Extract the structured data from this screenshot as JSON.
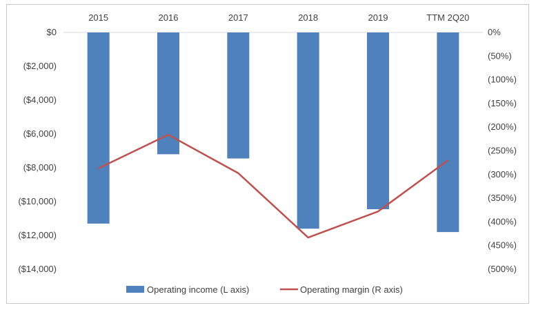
{
  "chart_data": {
    "type": "bar",
    "categories": [
      "2015",
      "2016",
      "2017",
      "2018",
      "2019",
      "TTM 2Q20"
    ],
    "series": [
      {
        "name": "Operating income (L axis)",
        "type": "bar",
        "axis": "left",
        "color": "#4f81bd",
        "values": [
          -11300,
          -7200,
          -7450,
          -11600,
          -10450,
          -11800
        ]
      },
      {
        "name": "Operating margin (R axis)",
        "type": "line",
        "axis": "right",
        "color": "#c0504d",
        "values": [
          -287,
          -216,
          -297,
          -433,
          -378,
          -270
        ]
      }
    ],
    "left_axis": {
      "ylim": [
        -14000,
        0
      ],
      "ticks": [
        0,
        -2000,
        -4000,
        -6000,
        -8000,
        -10000,
        -12000,
        -14000
      ],
      "tick_labels": [
        "$0",
        "($2,000)",
        "($4,000)",
        "($6,000)",
        "($8,000)",
        "($10,000)",
        "($12,000)",
        "($14,000)"
      ]
    },
    "right_axis": {
      "ylim": [
        -500,
        0
      ],
      "ticks": [
        0,
        -50,
        -100,
        -150,
        -200,
        -250,
        -300,
        -350,
        -400,
        -450,
        -500
      ],
      "tick_labels": [
        "0%",
        "(50%)",
        "(100%)",
        "(150%)",
        "(200%)",
        "(250%)",
        "(300%)",
        "(350%)",
        "(400%)",
        "(450%)",
        "(500%)"
      ]
    },
    "x_axis_position": "top",
    "grid": false,
    "legend_position": "bottom"
  }
}
